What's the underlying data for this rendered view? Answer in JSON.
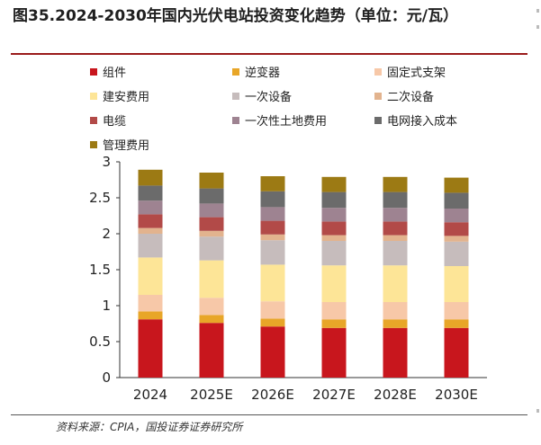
{
  "title": "图35.2024-2030年国内光伏电站投资变化趋势（单位：元/瓦）",
  "source": "资料来源：CPIA，国投证券证券研究所",
  "chart_data": {
    "type": "bar",
    "stacked": true,
    "title": "",
    "xlabel": "",
    "ylabel": "",
    "ylim": [
      0,
      3
    ],
    "yticks": [
      "0",
      "0.5",
      "1",
      "1.5",
      "2",
      "2.5",
      "3"
    ],
    "grid": false,
    "legend_position": "top",
    "categories": [
      "2024",
      "2025E",
      "2026E",
      "2027E",
      "2028E",
      "2030E"
    ],
    "series": [
      {
        "name": "组件",
        "color": "#c8161d",
        "values": [
          0.81,
          0.76,
          0.71,
          0.69,
          0.69,
          0.69
        ]
      },
      {
        "name": "逆变器",
        "color": "#e8a628",
        "values": [
          0.11,
          0.11,
          0.11,
          0.12,
          0.12,
          0.12
        ]
      },
      {
        "name": "固定式支架",
        "color": "#f7c8a8",
        "values": [
          0.23,
          0.24,
          0.24,
          0.24,
          0.24,
          0.24
        ]
      },
      {
        "name": "建安费用",
        "color": "#fde597",
        "values": [
          0.52,
          0.52,
          0.51,
          0.51,
          0.51,
          0.5
        ]
      },
      {
        "name": "一次设备",
        "color": "#c6bcbc",
        "values": [
          0.33,
          0.33,
          0.34,
          0.34,
          0.34,
          0.34
        ]
      },
      {
        "name": "二次设备",
        "color": "#e2b38e",
        "values": [
          0.08,
          0.08,
          0.08,
          0.08,
          0.08,
          0.08
        ]
      },
      {
        "name": "电缆",
        "color": "#b24a48",
        "values": [
          0.19,
          0.19,
          0.19,
          0.19,
          0.19,
          0.19
        ]
      },
      {
        "name": "一次性土地费用",
        "color": "#9e8391",
        "values": [
          0.19,
          0.19,
          0.19,
          0.19,
          0.19,
          0.19
        ]
      },
      {
        "name": "电网接入成本",
        "color": "#6b6b6b",
        "values": [
          0.21,
          0.21,
          0.22,
          0.22,
          0.22,
          0.22
        ]
      },
      {
        "name": "管理费用",
        "color": "#9c7a14",
        "values": [
          0.22,
          0.22,
          0.21,
          0.21,
          0.21,
          0.21
        ]
      }
    ]
  }
}
